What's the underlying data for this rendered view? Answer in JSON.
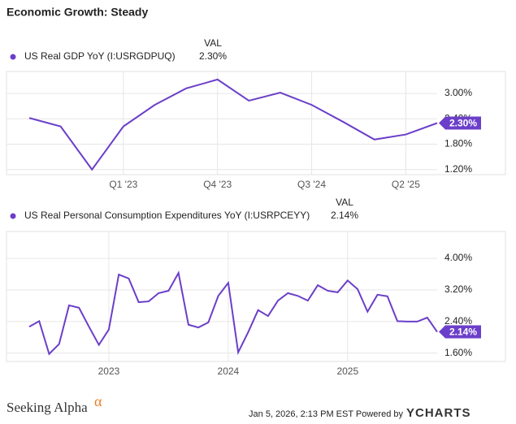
{
  "header": {
    "title": "Economic Growth: Steady"
  },
  "footer": {
    "brand": "Seeking Alpha",
    "brand_mark": "α",
    "timestamp": "Jan 5, 2026, 2:13 PM EST Powered by",
    "powered": "YCHARTS"
  },
  "chart_data": [
    {
      "type": "line",
      "legend_header": "VAL",
      "categories": [
        null,
        null,
        null,
        "Q1 '23",
        null,
        null,
        "Q4 '23",
        null,
        null,
        "Q3 '24",
        null,
        null,
        "Q2 '25",
        null
      ],
      "series": [
        {
          "name": "US Real GDP YoY (I:USRGDPUQ)",
          "color": "#6b3fc9",
          "values": [
            2.42,
            2.22,
            1.2,
            2.22,
            2.73,
            3.12,
            3.33,
            2.83,
            3.02,
            2.73,
            2.33,
            1.91,
            2.03,
            2.3
          ],
          "value_labels": [
            null,
            null,
            null,
            null,
            null,
            null,
            null,
            null,
            null,
            null,
            null,
            null,
            null,
            "2.30%"
          ]
        }
      ],
      "ylim": [
        1.08,
        3.52
      ],
      "yticks": [
        {
          "value": 1.2,
          "label": "1.20%"
        },
        {
          "value": 1.8,
          "label": "1.80%"
        },
        {
          "value": 2.4,
          "label": "2.40%"
        },
        {
          "value": 3.0,
          "label": "3.00%"
        }
      ],
      "grid": true
    },
    {
      "type": "line",
      "legend_header": "VAL",
      "categories": [
        null,
        null,
        null,
        null,
        null,
        null,
        null,
        null,
        "2023",
        null,
        null,
        null,
        null,
        null,
        null,
        null,
        null,
        null,
        null,
        null,
        "2024",
        null,
        null,
        null,
        null,
        null,
        null,
        null,
        null,
        null,
        null,
        null,
        "2025",
        null,
        null,
        null,
        null,
        null,
        null,
        null,
        null,
        null
      ],
      "series": [
        {
          "name": "US Real Personal Consumption Expenditures YoY (I:USRPCEYY)",
          "color": "#6b3fc9",
          "values": [
            2.27,
            2.41,
            1.58,
            1.83,
            2.81,
            2.75,
            2.27,
            1.81,
            2.2,
            3.59,
            3.49,
            2.89,
            2.91,
            3.12,
            3.18,
            3.63,
            2.32,
            2.25,
            2.38,
            3.05,
            3.38,
            1.62,
            2.13,
            2.69,
            2.54,
            2.93,
            3.12,
            3.05,
            2.93,
            3.32,
            3.18,
            3.14,
            3.44,
            3.22,
            2.65,
            3.08,
            3.04,
            2.41,
            2.4,
            2.4,
            2.5,
            2.14
          ],
          "value_labels": [
            null,
            null,
            null,
            null,
            null,
            null,
            null,
            null,
            null,
            null,
            null,
            null,
            null,
            null,
            null,
            null,
            null,
            null,
            null,
            null,
            null,
            null,
            null,
            null,
            null,
            null,
            null,
            null,
            null,
            null,
            null,
            null,
            null,
            null,
            null,
            null,
            null,
            null,
            null,
            null,
            null,
            "2.14%"
          ]
        }
      ],
      "ylim": [
        1.39,
        4.68
      ],
      "yticks": [
        {
          "value": 1.6,
          "label": "1.60%"
        },
        {
          "value": 2.4,
          "label": "2.40%"
        },
        {
          "value": 3.2,
          "label": "3.20%"
        },
        {
          "value": 4.0,
          "label": "4.00%"
        }
      ],
      "grid": true
    }
  ]
}
